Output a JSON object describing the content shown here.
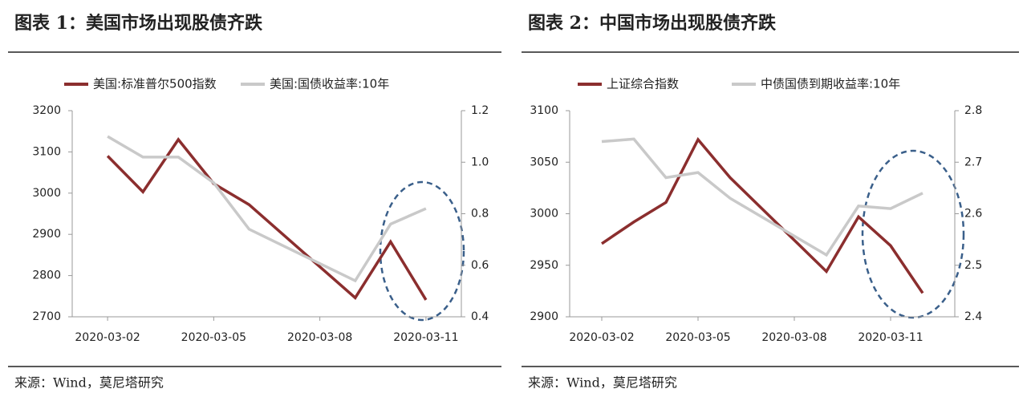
{
  "chart_data": [
    {
      "type": "line",
      "title": "图表 1：美国市场出现股债齐跌",
      "source": "来源：Wind，莫尼塔研究",
      "x": [
        "2020-03-02",
        "2020-03-03",
        "2020-03-04",
        "2020-03-05",
        "2020-03-06",
        "2020-03-09",
        "2020-03-10",
        "2020-03-11"
      ],
      "xlim": [
        "2020-03-01",
        "2020-03-12"
      ],
      "xticks": [
        "2020-03-02",
        "2020-03-05",
        "2020-03-08",
        "2020-03-11"
      ],
      "ylim": [
        2700,
        3200
      ],
      "yticks": [
        2700,
        2800,
        2900,
        3000,
        3100,
        3200
      ],
      "y2lim": [
        0.4,
        1.2
      ],
      "y2ticks": [
        {
          "value": 0.4,
          "label": "0.4"
        },
        {
          "value": 0.6,
          "label": "0.6"
        },
        {
          "value": 0.8,
          "label": "0.8"
        },
        {
          "value": 1.0,
          "label": "1.0"
        },
        {
          "value": 1.2,
          "label": "1.2"
        }
      ],
      "series": [
        {
          "name": "美国:标准普尔500指数",
          "color": "#8b2e2e",
          "values": [
            3090,
            3003,
            3130,
            3023,
            2972,
            2746,
            2882,
            2741
          ]
        },
        {
          "name": "美国:国债收益率:10年",
          "color": "#c9c9c9",
          "axis": "y2",
          "values": [
            1.1,
            1.02,
            1.02,
            0.92,
            0.74,
            0.54,
            0.76,
            0.82
          ]
        }
      ]
    },
    {
      "type": "line",
      "title": "图表 2：中国市场出现股债齐跌",
      "source": "来源：Wind，莫尼塔研究",
      "x": [
        "2020-03-02",
        "2020-03-03",
        "2020-03-04",
        "2020-03-05",
        "2020-03-06",
        "2020-03-09",
        "2020-03-10",
        "2020-03-11",
        "2020-03-12"
      ],
      "xlim": [
        "2020-03-01",
        "2020-03-13"
      ],
      "xticks": [
        "2020-03-02",
        "2020-03-05",
        "2020-03-08",
        "2020-03-11"
      ],
      "ylim": [
        2900,
        3100
      ],
      "yticks": [
        2900,
        2950,
        3000,
        3050,
        3100
      ],
      "y2lim": [
        2.4,
        2.8
      ],
      "y2ticks": [
        2.4,
        2.5,
        2.6,
        2.7,
        2.8
      ],
      "series": [
        {
          "name": "上证综合指数",
          "color": "#8b2e2e",
          "values": [
            2971,
            2992,
            3011,
            3072,
            3035,
            2944,
            2997,
            2969,
            2923
          ]
        },
        {
          "name": "中债国债到期收益率:10年",
          "color": "#c9c9c9",
          "axis": "y2",
          "values": [
            2.74,
            2.745,
            2.67,
            2.68,
            2.63,
            2.52,
            2.615,
            2.61,
            2.64
          ]
        }
      ]
    }
  ]
}
